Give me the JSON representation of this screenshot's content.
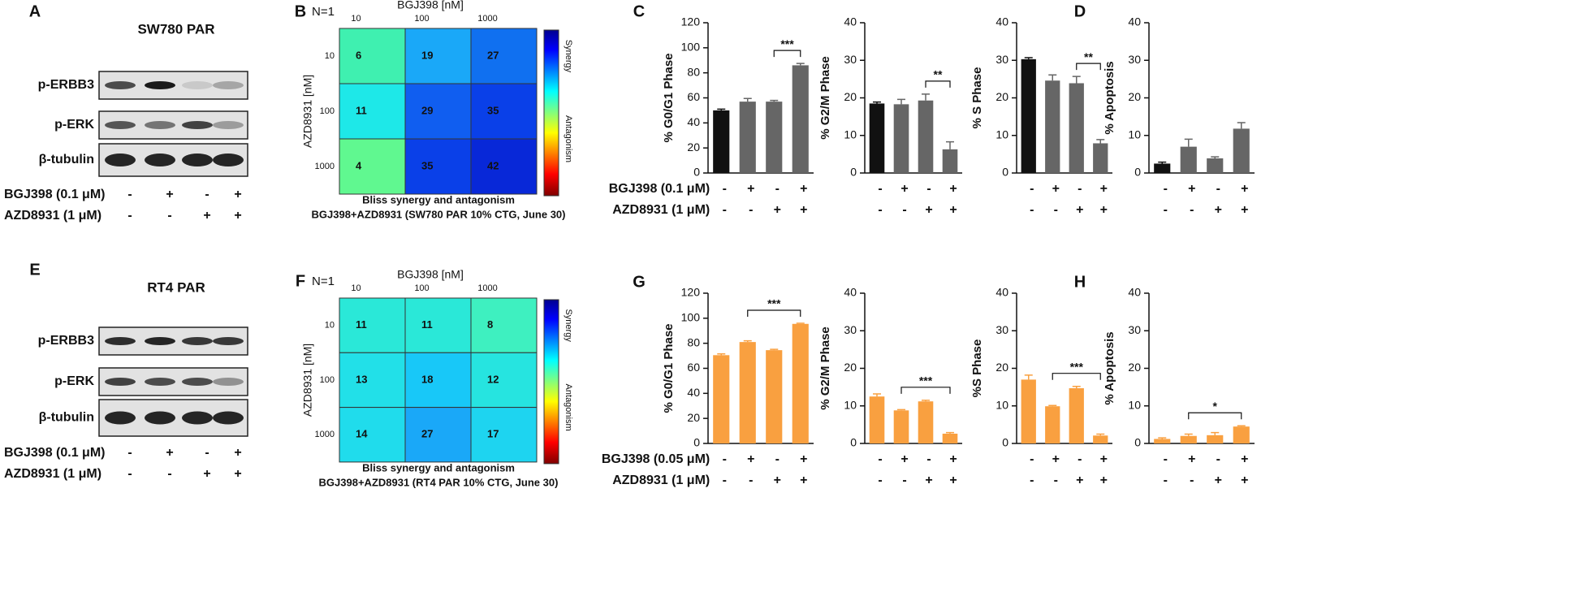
{
  "blots": [
    {
      "panel_label": "A",
      "title": "SW780 PAR",
      "rows": [
        "p-ERBB3",
        "p-ERK",
        "β-tubulin"
      ],
      "treatments": [
        {
          "name": "BGJ398 (0.1 μM)",
          "signs": [
            "-",
            "+",
            "-",
            "+"
          ]
        },
        {
          "name": "AZD8931 (1 μM)",
          "signs": [
            "-",
            "-",
            "+",
            "+"
          ]
        }
      ]
    },
    {
      "panel_label": "E",
      "title": "RT4 PAR",
      "rows": [
        "p-ERBB3",
        "p-ERK",
        "β-tubulin"
      ],
      "treatments": [
        {
          "name": "BGJ398 (0.1 μM)",
          "signs": [
            "-",
            "+",
            "-",
            "+"
          ]
        },
        {
          "name": "AZD8931 (1 μM)",
          "signs": [
            "-",
            "-",
            "+",
            "+"
          ]
        }
      ]
    }
  ],
  "chart_data": [
    {
      "type": "heatmap",
      "panel_label": "B",
      "annotation": "N=1",
      "xlabel": "BGJ398 [nM]",
      "ylabel": "AZD8931 [nM]",
      "categories": [
        "10",
        "100",
        "1000"
      ],
      "y_categories": [
        "10",
        "100",
        "1000"
      ],
      "values": [
        [
          6,
          19,
          27
        ],
        [
          11,
          29,
          35
        ],
        [
          4,
          35,
          42
        ]
      ],
      "colors": [
        [
          "#3ff0b0",
          "#1aa8f8",
          "#1070f0"
        ],
        [
          "#1ee8e8",
          "#105ef0",
          "#0a40e8"
        ],
        [
          "#60f890",
          "#0a40e8",
          "#0828d8"
        ]
      ],
      "colorbar_labels": [
        "Synergy",
        "Antagonism"
      ],
      "caption": [
        "Bliss synergy and antagonism",
        "BGJ398+AZD8931 (SW780 PAR 10% CTG, June 30)"
      ]
    },
    {
      "type": "heatmap",
      "panel_label": "F",
      "annotation": "N=1",
      "xlabel": "BGJ398 [nM]",
      "ylabel": "AZD8931 [nM]",
      "categories": [
        "10",
        "100",
        "1000"
      ],
      "y_categories": [
        "10",
        "100",
        "1000"
      ],
      "values": [
        [
          11,
          11,
          8
        ],
        [
          13,
          18,
          12
        ],
        [
          14,
          27,
          17
        ]
      ],
      "colors": [
        [
          "#2ae8d8",
          "#2ae8d8",
          "#3ef0c0"
        ],
        [
          "#22e0e8",
          "#18c8f8",
          "#26e4e0"
        ],
        [
          "#20dcec",
          "#1aa8f8",
          "#1ed4f0"
        ]
      ],
      "colorbar_labels": [
        "Synergy",
        "Antagonism"
      ],
      "caption": [
        "Bliss synergy and antagonism",
        "BGJ398+AZD8931 (RT4 PAR 10% CTG, June 30)"
      ]
    },
    {
      "type": "bar",
      "panel_label": "C",
      "ylabel": "% G0/G1 Phase",
      "ylim": [
        0,
        120
      ],
      "yticks": [
        0,
        20,
        40,
        60,
        80,
        100,
        120
      ],
      "values": [
        50,
        57,
        57,
        86
      ],
      "errors": [
        1,
        2.5,
        1,
        1.5
      ],
      "colors": [
        "#111111",
        "#666666",
        "#666666",
        "#666666"
      ],
      "row_labels": [
        "BGJ398 (0.1 μM)",
        "AZD8931 (1 μM)"
      ],
      "signs": [
        [
          "-",
          "+",
          "-",
          "+"
        ],
        [
          "-",
          "-",
          "+",
          "+"
        ]
      ],
      "brackets": [
        {
          "from": 2,
          "to": 3,
          "label": "***"
        }
      ]
    },
    {
      "type": "bar",
      "ylabel": "% G2/M Phase",
      "ylim": [
        0,
        40
      ],
      "yticks": [
        0,
        10,
        20,
        30,
        40
      ],
      "values": [
        18.5,
        18.3,
        19.3,
        6.3
      ],
      "errors": [
        0.4,
        1.3,
        1.7,
        2
      ],
      "colors": [
        "#111111",
        "#666666",
        "#666666",
        "#666666"
      ],
      "signs": [
        [
          "-",
          "+",
          "-",
          "+"
        ],
        [
          "-",
          "-",
          "+",
          "+"
        ]
      ],
      "brackets": [
        {
          "from": 2,
          "to": 3,
          "label": "**"
        }
      ]
    },
    {
      "type": "bar",
      "ylabel": "% S Phase",
      "ylim": [
        0,
        40
      ],
      "yticks": [
        0,
        10,
        20,
        30,
        40
      ],
      "values": [
        30.3,
        24.6,
        23.9,
        7.9
      ],
      "errors": [
        0.4,
        1.5,
        1.8,
        1
      ],
      "colors": [
        "#111111",
        "#666666",
        "#666666",
        "#666666"
      ],
      "signs": [
        [
          "-",
          "+",
          "-",
          "+"
        ],
        [
          "-",
          "-",
          "+",
          "+"
        ]
      ],
      "brackets": [
        {
          "from": 2,
          "to": 3,
          "label": "**"
        }
      ]
    },
    {
      "type": "bar",
      "panel_label": "D",
      "ylabel": "% Apoptosis",
      "ylim": [
        0,
        40
      ],
      "yticks": [
        0,
        10,
        20,
        30,
        40
      ],
      "values": [
        2.5,
        7,
        3.9,
        11.8
      ],
      "errors": [
        0.4,
        2,
        0.4,
        1.6
      ],
      "colors": [
        "#111111",
        "#666666",
        "#666666",
        "#666666"
      ],
      "signs": [
        [
          "-",
          "+",
          "-",
          "+"
        ],
        [
          "-",
          "-",
          "+",
          "+"
        ]
      ],
      "brackets": []
    },
    {
      "type": "bar",
      "panel_label": "G",
      "ylabel": "% G0/G1 Phase",
      "ylim": [
        0,
        120
      ],
      "yticks": [
        0,
        20,
        40,
        60,
        80,
        100,
        120
      ],
      "values": [
        70.5,
        81,
        74.5,
        95.5
      ],
      "errors": [
        1,
        1,
        0.7,
        0.5
      ],
      "colors": [
        "#f9a040",
        "#f9a040",
        "#f9a040",
        "#f9a040"
      ],
      "row_labels": [
        "BGJ398 (0.05 μM)",
        "AZD8931 (1 μM)"
      ],
      "signs": [
        [
          "-",
          "+",
          "-",
          "+"
        ],
        [
          "-",
          "-",
          "+",
          "+"
        ]
      ],
      "brackets": [
        {
          "from": 1,
          "to": 3,
          "label": "***"
        }
      ]
    },
    {
      "type": "bar",
      "ylabel": "% G2/M Phase",
      "ylim": [
        0,
        40
      ],
      "yticks": [
        0,
        10,
        20,
        30,
        40
      ],
      "values": [
        12.5,
        8.8,
        11.2,
        2.6
      ],
      "errors": [
        0.7,
        0.2,
        0.3,
        0.3
      ],
      "colors": [
        "#f9a040",
        "#f9a040",
        "#f9a040",
        "#f9a040"
      ],
      "signs": [
        [
          "-",
          "+",
          "-",
          "+"
        ],
        [
          "-",
          "-",
          "+",
          "+"
        ]
      ],
      "brackets": [
        {
          "from": 1,
          "to": 3,
          "label": "***"
        }
      ]
    },
    {
      "type": "bar",
      "ylabel": "%S Phase",
      "ylim": [
        0,
        40
      ],
      "yticks": [
        0,
        10,
        20,
        30,
        40
      ],
      "values": [
        17,
        9.9,
        14.7,
        2.1
      ],
      "errors": [
        1.2,
        0.2,
        0.5,
        0.4
      ],
      "colors": [
        "#f9a040",
        "#f9a040",
        "#f9a040",
        "#f9a040"
      ],
      "signs": [
        [
          "-",
          "+",
          "-",
          "+"
        ],
        [
          "-",
          "-",
          "+",
          "+"
        ]
      ],
      "brackets": [
        {
          "from": 1,
          "to": 3,
          "label": "***"
        }
      ]
    },
    {
      "type": "bar",
      "panel_label": "H",
      "ylabel": "% Apoptosis",
      "ylim": [
        0,
        40
      ],
      "yticks": [
        0,
        10,
        20,
        30,
        40
      ],
      "values": [
        1.2,
        2,
        2.2,
        4.5
      ],
      "errors": [
        0.3,
        0.5,
        0.7,
        0.2
      ],
      "colors": [
        "#f9a040",
        "#f9a040",
        "#f9a040",
        "#f9a040"
      ],
      "signs": [
        [
          "-",
          "+",
          "-",
          "+"
        ],
        [
          "-",
          "-",
          "+",
          "+"
        ]
      ],
      "brackets": [
        {
          "from": 1,
          "to": 3,
          "label": "*"
        }
      ]
    }
  ]
}
